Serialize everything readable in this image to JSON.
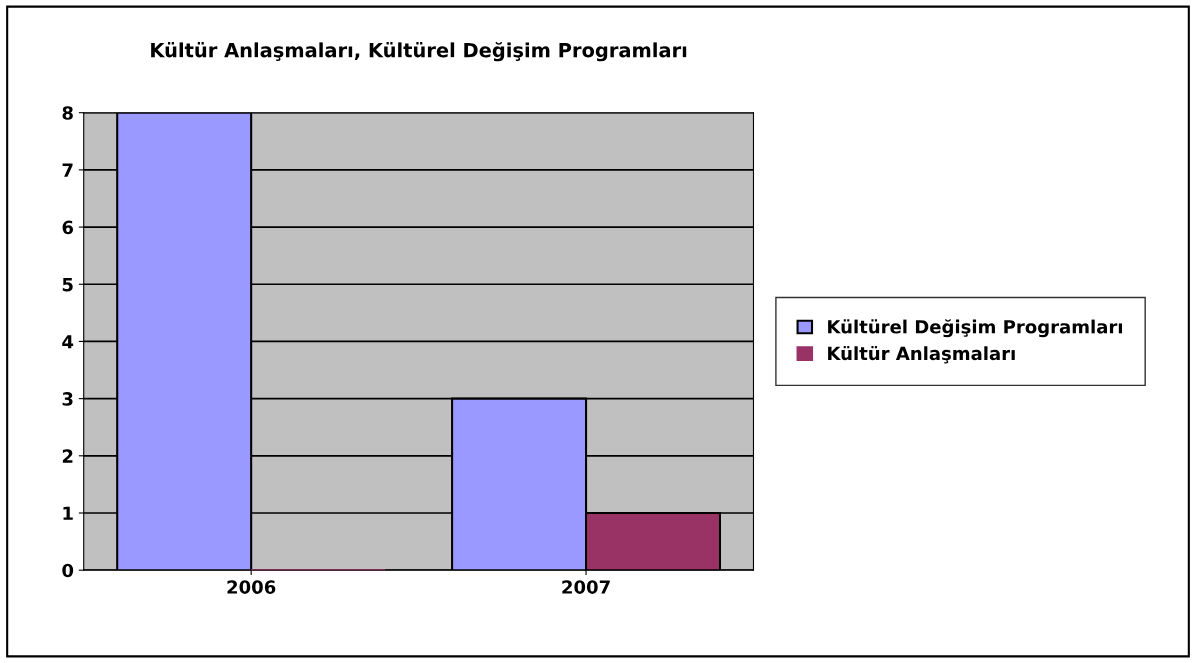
{
  "chart_data": {
    "type": "bar",
    "title": "Kültür Anlaşmaları, Kültürel Değişim Programları",
    "categories": [
      "2006",
      "2007"
    ],
    "series": [
      {
        "name": "Kültürel Değişim Programları",
        "color": "#9999ff",
        "values": [
          8,
          3
        ]
      },
      {
        "name": "Kültür Anlaşmaları",
        "color": "#993366",
        "values": [
          0,
          1
        ]
      }
    ],
    "ylim": [
      0,
      8
    ],
    "yticks": [
      0,
      1,
      2,
      3,
      4,
      5,
      6,
      7,
      8
    ],
    "grid": "y",
    "legend": "right"
  }
}
